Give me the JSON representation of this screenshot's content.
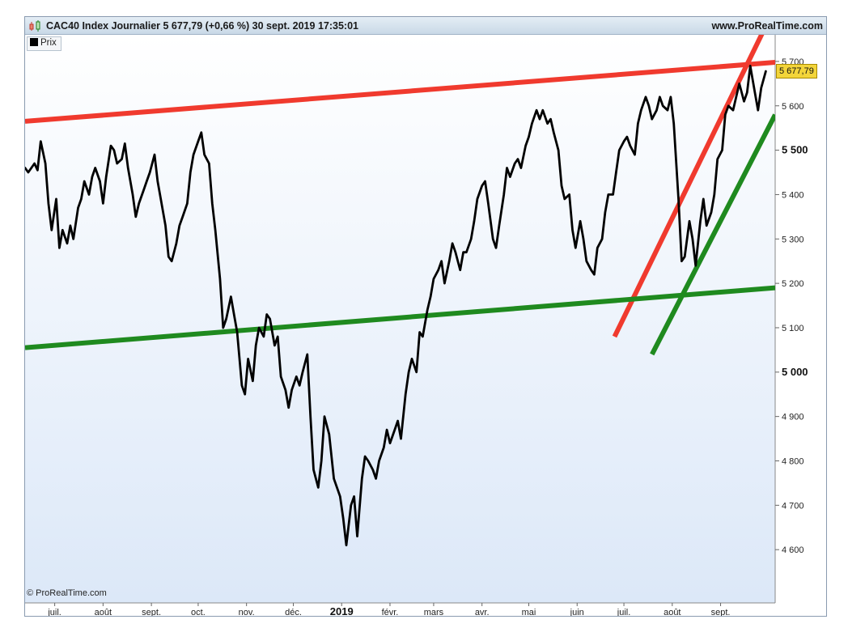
{
  "header": {
    "title": "CAC40 Index Journalier 5 677,79 (+0,66 %) 30 sept. 2019 17:35:01",
    "site": "www.ProRealTime.com",
    "icon": "candlestick-icon"
  },
  "legend": {
    "label": "Prix"
  },
  "watermark": "© ProRealTime.com",
  "last_value_label": "5 677,79",
  "colors": {
    "price": "#000000",
    "resistance": "#f03a2e",
    "support": "#1f8a1f",
    "badge": "#f3d53a"
  },
  "chart_data": {
    "type": "line",
    "title": "CAC40 Index Journalier",
    "xlabel": "",
    "ylabel": "",
    "x_range": [
      "2018-06-12",
      "2019-10-06"
    ],
    "ylim": [
      4480,
      5760
    ],
    "y_ticks": [
      4600,
      4700,
      4800,
      4900,
      5000,
      5100,
      5200,
      5300,
      5400,
      5500,
      5600,
      5700
    ],
    "y_tick_labels": [
      "4 600",
      "4 700",
      "4 800",
      "4 900",
      "5 000",
      "5 100",
      "5 200",
      "5 300",
      "5 400",
      "5 500",
      "5 600",
      "5 700"
    ],
    "y_bold_ticks": [
      5000,
      5500
    ],
    "x_ticks": [
      "2018-07-01",
      "2018-08-01",
      "2018-09-01",
      "2018-10-01",
      "2018-11-01",
      "2018-12-01",
      "2019-01-01",
      "2019-02-01",
      "2019-03-01",
      "2019-04-01",
      "2019-05-01",
      "2019-06-01",
      "2019-07-01",
      "2019-08-01",
      "2019-09-01"
    ],
    "x_tick_labels": [
      "juil.",
      "août",
      "sept.",
      "oct.",
      "nov.",
      "déc.",
      "2019",
      "févr.",
      "mars",
      "avr.",
      "mai",
      "juin",
      "juil.",
      "août",
      "sept."
    ],
    "x_bold_ticks": [
      "2019-01-01"
    ],
    "grid": false,
    "legend_position": "top-left",
    "series": [
      {
        "name": "Prix",
        "points": [
          [
            "2018-06-12",
            5460
          ],
          [
            "2018-06-14",
            5450
          ],
          [
            "2018-06-18",
            5470
          ],
          [
            "2018-06-20",
            5455
          ],
          [
            "2018-06-22",
            5520
          ],
          [
            "2018-06-25",
            5470
          ],
          [
            "2018-06-27",
            5380
          ],
          [
            "2018-06-29",
            5320
          ],
          [
            "2018-07-02",
            5390
          ],
          [
            "2018-07-04",
            5280
          ],
          [
            "2018-07-06",
            5320
          ],
          [
            "2018-07-09",
            5290
          ],
          [
            "2018-07-11",
            5330
          ],
          [
            "2018-07-13",
            5300
          ],
          [
            "2018-07-16",
            5370
          ],
          [
            "2018-07-18",
            5390
          ],
          [
            "2018-07-20",
            5430
          ],
          [
            "2018-07-23",
            5400
          ],
          [
            "2018-07-25",
            5440
          ],
          [
            "2018-07-27",
            5460
          ],
          [
            "2018-07-30",
            5430
          ],
          [
            "2018-08-01",
            5380
          ],
          [
            "2018-08-03",
            5440
          ],
          [
            "2018-08-06",
            5510
          ],
          [
            "2018-08-08",
            5500
          ],
          [
            "2018-08-10",
            5470
          ],
          [
            "2018-08-13",
            5480
          ],
          [
            "2018-08-15",
            5515
          ],
          [
            "2018-08-17",
            5460
          ],
          [
            "2018-08-20",
            5400
          ],
          [
            "2018-08-22",
            5350
          ],
          [
            "2018-08-24",
            5380
          ],
          [
            "2018-08-27",
            5410
          ],
          [
            "2018-08-29",
            5430
          ],
          [
            "2018-08-31",
            5450
          ],
          [
            "2018-09-03",
            5490
          ],
          [
            "2018-09-05",
            5430
          ],
          [
            "2018-09-07",
            5390
          ],
          [
            "2018-09-10",
            5330
          ],
          [
            "2018-09-12",
            5260
          ],
          [
            "2018-09-14",
            5250
          ],
          [
            "2018-09-17",
            5290
          ],
          [
            "2018-09-19",
            5330
          ],
          [
            "2018-09-21",
            5350
          ],
          [
            "2018-09-24",
            5380
          ],
          [
            "2018-09-26",
            5450
          ],
          [
            "2018-09-28",
            5490
          ],
          [
            "2018-10-01",
            5520
          ],
          [
            "2018-10-03",
            5540
          ],
          [
            "2018-10-05",
            5490
          ],
          [
            "2018-10-08",
            5470
          ],
          [
            "2018-10-10",
            5380
          ],
          [
            "2018-10-12",
            5320
          ],
          [
            "2018-10-15",
            5210
          ],
          [
            "2018-10-17",
            5100
          ],
          [
            "2018-10-19",
            5120
          ],
          [
            "2018-10-22",
            5170
          ],
          [
            "2018-10-24",
            5130
          ],
          [
            "2018-10-26",
            5090
          ],
          [
            "2018-10-29",
            4970
          ],
          [
            "2018-10-31",
            4950
          ],
          [
            "2018-11-02",
            5030
          ],
          [
            "2018-11-05",
            4980
          ],
          [
            "2018-11-07",
            5060
          ],
          [
            "2018-11-09",
            5100
          ],
          [
            "2018-11-12",
            5080
          ],
          [
            "2018-11-14",
            5130
          ],
          [
            "2018-11-16",
            5120
          ],
          [
            "2018-11-19",
            5060
          ],
          [
            "2018-11-21",
            5080
          ],
          [
            "2018-11-23",
            4990
          ],
          [
            "2018-11-26",
            4960
          ],
          [
            "2018-11-28",
            4920
          ],
          [
            "2018-11-30",
            4960
          ],
          [
            "2018-12-03",
            4990
          ],
          [
            "2018-12-05",
            4970
          ],
          [
            "2018-12-07",
            5000
          ],
          [
            "2018-12-10",
            5040
          ],
          [
            "2018-12-12",
            4900
          ],
          [
            "2018-12-14",
            4780
          ],
          [
            "2018-12-17",
            4740
          ],
          [
            "2018-12-19",
            4800
          ],
          [
            "2018-12-21",
            4900
          ],
          [
            "2018-12-24",
            4860
          ],
          [
            "2018-12-27",
            4760
          ],
          [
            "2018-12-31",
            4720
          ],
          [
            "2019-01-02",
            4670
          ],
          [
            "2019-01-04",
            4610
          ],
          [
            "2019-01-07",
            4700
          ],
          [
            "2019-01-09",
            4720
          ],
          [
            "2019-01-11",
            4630
          ],
          [
            "2019-01-14",
            4760
          ],
          [
            "2019-01-16",
            4810
          ],
          [
            "2019-01-18",
            4800
          ],
          [
            "2019-01-21",
            4780
          ],
          [
            "2019-01-23",
            4760
          ],
          [
            "2019-01-25",
            4800
          ],
          [
            "2019-01-28",
            4830
          ],
          [
            "2019-01-30",
            4870
          ],
          [
            "2019-02-01",
            4840
          ],
          [
            "2019-02-04",
            4870
          ],
          [
            "2019-02-06",
            4890
          ],
          [
            "2019-02-08",
            4850
          ],
          [
            "2019-02-11",
            4950
          ],
          [
            "2019-02-13",
            5000
          ],
          [
            "2019-02-15",
            5030
          ],
          [
            "2019-02-18",
            5000
          ],
          [
            "2019-02-20",
            5090
          ],
          [
            "2019-02-22",
            5080
          ],
          [
            "2019-02-25",
            5140
          ],
          [
            "2019-02-27",
            5170
          ],
          [
            "2019-03-01",
            5210
          ],
          [
            "2019-03-04",
            5230
          ],
          [
            "2019-03-06",
            5250
          ],
          [
            "2019-03-08",
            5200
          ],
          [
            "2019-03-11",
            5250
          ],
          [
            "2019-03-13",
            5290
          ],
          [
            "2019-03-15",
            5270
          ],
          [
            "2019-03-18",
            5230
          ],
          [
            "2019-03-20",
            5270
          ],
          [
            "2019-03-22",
            5270
          ],
          [
            "2019-03-25",
            5300
          ],
          [
            "2019-03-27",
            5340
          ],
          [
            "2019-03-29",
            5390
          ],
          [
            "2019-04-01",
            5420
          ],
          [
            "2019-04-03",
            5430
          ],
          [
            "2019-04-05",
            5380
          ],
          [
            "2019-04-08",
            5300
          ],
          [
            "2019-04-10",
            5280
          ],
          [
            "2019-04-12",
            5330
          ],
          [
            "2019-04-15",
            5400
          ],
          [
            "2019-04-17",
            5460
          ],
          [
            "2019-04-19",
            5440
          ],
          [
            "2019-04-22",
            5470
          ],
          [
            "2019-04-24",
            5480
          ],
          [
            "2019-04-26",
            5460
          ],
          [
            "2019-04-29",
            5510
          ],
          [
            "2019-05-01",
            5530
          ],
          [
            "2019-05-03",
            5560
          ],
          [
            "2019-05-06",
            5590
          ],
          [
            "2019-05-08",
            5570
          ],
          [
            "2019-05-10",
            5590
          ],
          [
            "2019-05-13",
            5560
          ],
          [
            "2019-05-15",
            5570
          ],
          [
            "2019-05-17",
            5540
          ],
          [
            "2019-05-20",
            5500
          ],
          [
            "2019-05-22",
            5420
          ],
          [
            "2019-05-24",
            5390
          ],
          [
            "2019-05-27",
            5400
          ],
          [
            "2019-05-29",
            5320
          ],
          [
            "2019-05-31",
            5280
          ],
          [
            "2019-06-03",
            5340
          ],
          [
            "2019-06-05",
            5300
          ],
          [
            "2019-06-07",
            5250
          ],
          [
            "2019-06-10",
            5230
          ],
          [
            "2019-06-12",
            5220
          ],
          [
            "2019-06-14",
            5280
          ],
          [
            "2019-06-17",
            5300
          ],
          [
            "2019-06-19",
            5360
          ],
          [
            "2019-06-21",
            5400
          ],
          [
            "2019-06-24",
            5400
          ],
          [
            "2019-06-26",
            5450
          ],
          [
            "2019-06-28",
            5500
          ],
          [
            "2019-07-01",
            5520
          ],
          [
            "2019-07-03",
            5530
          ],
          [
            "2019-07-05",
            5510
          ],
          [
            "2019-07-08",
            5490
          ],
          [
            "2019-07-10",
            5560
          ],
          [
            "2019-07-12",
            5590
          ],
          [
            "2019-07-15",
            5620
          ],
          [
            "2019-07-17",
            5600
          ],
          [
            "2019-07-19",
            5570
          ],
          [
            "2019-07-22",
            5590
          ],
          [
            "2019-07-24",
            5620
          ],
          [
            "2019-07-26",
            5600
          ],
          [
            "2019-07-29",
            5590
          ],
          [
            "2019-07-31",
            5620
          ],
          [
            "2019-08-02",
            5560
          ],
          [
            "2019-08-05",
            5390
          ],
          [
            "2019-08-07",
            5250
          ],
          [
            "2019-08-09",
            5260
          ],
          [
            "2019-08-12",
            5340
          ],
          [
            "2019-08-14",
            5300
          ],
          [
            "2019-08-16",
            5240
          ],
          [
            "2019-08-19",
            5340
          ],
          [
            "2019-08-21",
            5390
          ],
          [
            "2019-08-23",
            5330
          ],
          [
            "2019-08-26",
            5360
          ],
          [
            "2019-08-28",
            5400
          ],
          [
            "2019-08-30",
            5480
          ],
          [
            "2019-09-02",
            5500
          ],
          [
            "2019-09-04",
            5580
          ],
          [
            "2019-09-06",
            5600
          ],
          [
            "2019-09-09",
            5590
          ],
          [
            "2019-09-11",
            5620
          ],
          [
            "2019-09-13",
            5650
          ],
          [
            "2019-09-16",
            5610
          ],
          [
            "2019-09-18",
            5630
          ],
          [
            "2019-09-20",
            5690
          ],
          [
            "2019-09-23",
            5630
          ],
          [
            "2019-09-25",
            5590
          ],
          [
            "2019-09-27",
            5640
          ],
          [
            "2019-09-30",
            5677.79
          ]
        ]
      }
    ],
    "trendlines": [
      {
        "name": "resistance-long",
        "color": "#f03a2e",
        "points": [
          [
            "2018-06-12",
            5565
          ],
          [
            "2019-10-06",
            5698
          ]
        ]
      },
      {
        "name": "resistance-short",
        "color": "#f03a2e",
        "points": [
          [
            "2019-06-25",
            5080
          ],
          [
            "2019-09-30",
            5780
          ]
        ]
      },
      {
        "name": "support-long",
        "color": "#1f8a1f",
        "points": [
          [
            "2018-06-12",
            5055
          ],
          [
            "2019-10-06",
            5190
          ]
        ]
      },
      {
        "name": "support-short",
        "color": "#1f8a1f",
        "points": [
          [
            "2019-07-19",
            5040
          ],
          [
            "2019-10-06",
            5580
          ]
        ]
      }
    ]
  }
}
